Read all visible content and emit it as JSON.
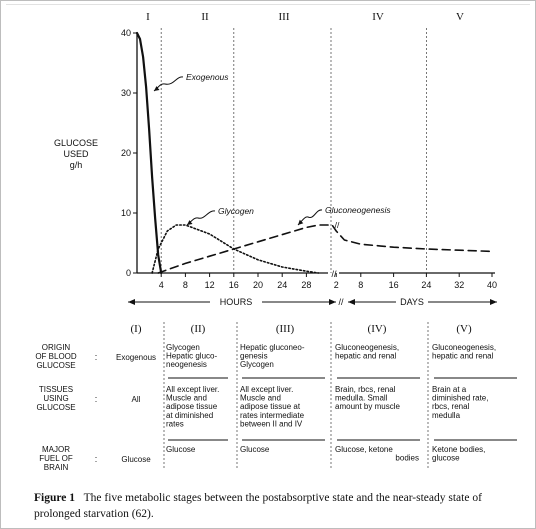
{
  "chart_data": {
    "type": "line",
    "ylabel_lines": [
      "GLUCOSE",
      "USED",
      "g/h"
    ],
    "ylim": [
      0,
      40
    ],
    "y_ticks": [
      "0",
      "10",
      "20",
      "30",
      "40"
    ],
    "x_ticks_hours": [
      "4",
      "8",
      "12",
      "16",
      "20",
      "24",
      "28"
    ],
    "x_ticks_days": [
      "2",
      "8",
      "16",
      "24",
      "32",
      "40"
    ],
    "x_axis_break": "//",
    "axis_labels": {
      "hours": "HOURS",
      "days": "DAYS"
    },
    "stages": [
      "I",
      "II",
      "III",
      "IV",
      "V"
    ],
    "series": [
      {
        "name": "Exogenous",
        "style": "solid",
        "points": [
          {
            "period": "hours",
            "x": 0,
            "y": 40
          },
          {
            "period": "hours",
            "x": 0.5,
            "y": 39
          },
          {
            "period": "hours",
            "x": 1,
            "y": 36
          },
          {
            "period": "hours",
            "x": 1.5,
            "y": 31
          },
          {
            "period": "hours",
            "x": 2,
            "y": 24
          },
          {
            "period": "hours",
            "x": 2.5,
            "y": 16
          },
          {
            "period": "hours",
            "x": 3,
            "y": 9
          },
          {
            "period": "hours",
            "x": 3.5,
            "y": 3
          },
          {
            "period": "hours",
            "x": 4,
            "y": 0
          }
        ]
      },
      {
        "name": "Glycogen",
        "style": "dotted",
        "points": [
          {
            "period": "hours",
            "x": 2.5,
            "y": 0
          },
          {
            "period": "hours",
            "x": 3.5,
            "y": 4
          },
          {
            "period": "hours",
            "x": 5,
            "y": 7
          },
          {
            "period": "hours",
            "x": 6.5,
            "y": 8
          },
          {
            "period": "hours",
            "x": 8,
            "y": 8
          },
          {
            "period": "hours",
            "x": 12,
            "y": 6.5
          },
          {
            "period": "hours",
            "x": 16,
            "y": 4
          },
          {
            "period": "hours",
            "x": 20,
            "y": 2.2
          },
          {
            "period": "hours",
            "x": 24,
            "y": 1
          },
          {
            "period": "hours",
            "x": 28,
            "y": 0.3
          },
          {
            "period": "hours",
            "x": 30,
            "y": 0
          }
        ]
      },
      {
        "name": "Gluconeogenesis",
        "style": "dashed",
        "points": [
          {
            "period": "hours",
            "x": 3.5,
            "y": 0
          },
          {
            "period": "hours",
            "x": 8,
            "y": 1.6
          },
          {
            "period": "hours",
            "x": 12,
            "y": 2.8
          },
          {
            "period": "hours",
            "x": 16,
            "y": 4
          },
          {
            "period": "hours",
            "x": 20,
            "y": 5.2
          },
          {
            "period": "hours",
            "x": 24,
            "y": 6.4
          },
          {
            "period": "hours",
            "x": 28,
            "y": 7.6
          },
          {
            "period": "hours",
            "x": 30,
            "y": 8
          },
          {
            "period": "days",
            "x": 1,
            "y": 8
          },
          {
            "period": "days",
            "x": 2,
            "y": 7
          },
          {
            "period": "days",
            "x": 4,
            "y": 5.5
          },
          {
            "period": "days",
            "x": 8,
            "y": 4.8
          },
          {
            "period": "days",
            "x": 16,
            "y": 4.3
          },
          {
            "period": "days",
            "x": 24,
            "y": 4
          },
          {
            "period": "days",
            "x": 32,
            "y": 3.8
          },
          {
            "period": "days",
            "x": 40,
            "y": 3.6
          }
        ]
      }
    ]
  },
  "table": {
    "stage_labels": [
      "(I)",
      "(II)",
      "(III)",
      "(IV)",
      "(V)"
    ],
    "rows": [
      {
        "header": [
          "ORIGIN",
          "OF BLOOD",
          "GLUCOSE"
        ],
        "colon": ":",
        "cells": [
          [
            "Exogenous"
          ],
          [
            "Glycogen",
            "Hepatic gluco-",
            "neogenesis"
          ],
          [
            "Hepatic gluconeo-",
            "genesis",
            "Glycogen"
          ],
          [
            "Gluconeogenesis,",
            "hepatic and renal"
          ],
          [
            "Gluconeogenesis,",
            "hepatic and renal"
          ]
        ]
      },
      {
        "header": [
          "TISSUES",
          "USING",
          "GLUCOSE"
        ],
        "colon": ":",
        "cells": [
          [
            "All"
          ],
          [
            "All except liver.",
            "Muscle and",
            "adipose tissue",
            "at diminished",
            "rates"
          ],
          [
            "All except liver.",
            "Muscle and",
            "adipose tissue at",
            "rates intermediate",
            "between II and IV"
          ],
          [
            "Brain, rbcs, renal",
            "medulla. Small",
            "amount by muscle"
          ],
          [
            "Brain at a",
            "diminished rate,",
            "rbcs, renal",
            "medulla"
          ]
        ]
      },
      {
        "header": [
          "MAJOR",
          "FUEL OF",
          "BRAIN"
        ],
        "colon": ":",
        "cells": [
          [
            "Glucose"
          ],
          [
            "Glucose"
          ],
          [
            "Glucose"
          ],
          [
            "Glucose, ketone",
            "bodies"
          ],
          [
            "Ketone bodies,",
            "glucose"
          ]
        ]
      }
    ]
  },
  "caption": {
    "label": "Figure 1",
    "text": "The five metabolic stages between the postabsorptive state and the near-steady state of prolonged starvation (62)."
  }
}
